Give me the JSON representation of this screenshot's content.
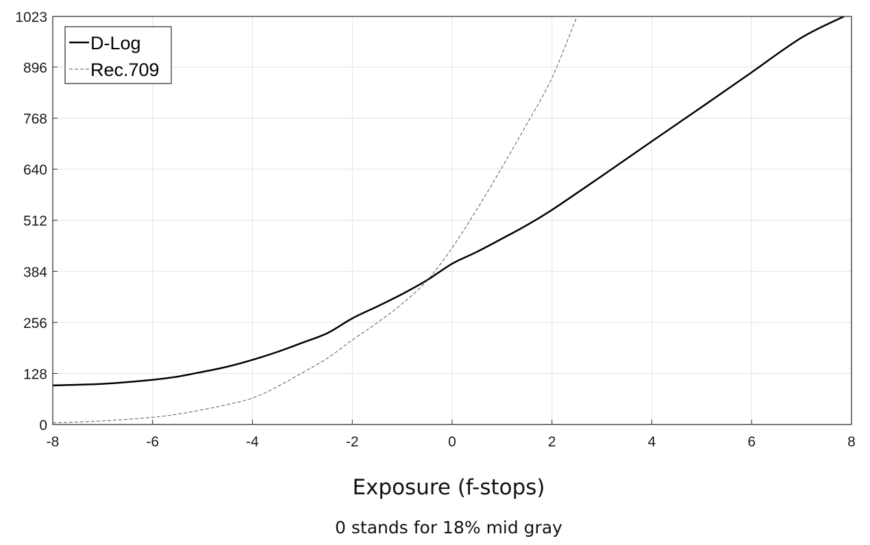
{
  "chart_data": {
    "type": "line",
    "xlabel": "Exposure (f-stops)",
    "note": "0 stands for 18% mid gray",
    "xlim": [
      -8,
      8
    ],
    "ylim": [
      0,
      1023
    ],
    "x_ticks": [
      -8,
      -6,
      -4,
      -2,
      0,
      2,
      4,
      6,
      8
    ],
    "y_ticks": [
      0,
      128,
      256,
      384,
      512,
      640,
      768,
      896,
      1023
    ],
    "grid": true,
    "legend_position": "top-left",
    "series": [
      {
        "name": "D-Log",
        "style": "solid",
        "color": "#000000",
        "x": [
          -8,
          -7,
          -6,
          -5.5,
          -5,
          -4.5,
          -4,
          -3.5,
          -3,
          -2.5,
          -2,
          -1.5,
          -1,
          -0.5,
          0,
          0.5,
          1,
          1.5,
          2,
          3,
          4,
          5,
          6,
          7,
          7.85
        ],
        "y": [
          98,
          102,
          112,
          120,
          132,
          145,
          162,
          182,
          205,
          229,
          266,
          296,
          327,
          362,
          403,
          433,
          466,
          500,
          538,
          623,
          710,
          796,
          883,
          970,
          1023
        ]
      },
      {
        "name": "Rec.709",
        "style": "dashed",
        "color": "#555555",
        "x": [
          -8,
          -7,
          -6,
          -5.5,
          -5,
          -4.5,
          -4,
          -3.5,
          -3,
          -2.5,
          -2,
          -1.5,
          -1,
          -0.5,
          0,
          0.5,
          1,
          1.5,
          2,
          2.5
        ],
        "y": [
          4,
          9,
          18,
          26,
          37,
          50,
          66,
          95,
          130,
          166,
          212,
          255,
          303,
          361,
          443,
          540,
          645,
          754,
          869,
          1023
        ]
      }
    ]
  }
}
